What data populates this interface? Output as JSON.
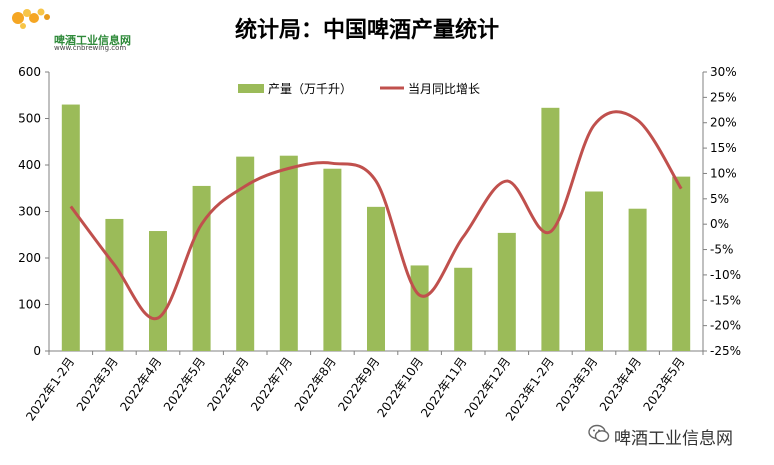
{
  "logo": {
    "name": "啤酒工业信息网",
    "url": "www.cnbrewing.com"
  },
  "watermark": "啤酒工业信息网",
  "colors": {
    "bar": "#9bbb59",
    "line": "#c0504d",
    "axis": "#808080",
    "text": "#000000"
  },
  "chart_data": {
    "type": "bar",
    "title": "统计局：中国啤酒产量统计",
    "categories": [
      "2022年1-2月",
      "2022年3月",
      "2022年4月",
      "2022年5月",
      "2022年6月",
      "2022年7月",
      "2022年8月",
      "2022年9月",
      "2022年10月",
      "2022年11月",
      "2022年12月",
      "2023年1-2月",
      "2023年3月",
      "2023年4月",
      "2023年5月"
    ],
    "series": [
      {
        "name": "产量（万千升）",
        "type": "bar",
        "axis": "left",
        "values": [
          530,
          284,
          258,
          355,
          418,
          420,
          392,
          310,
          184,
          179,
          254,
          523,
          343,
          306,
          375
        ]
      },
      {
        "name": "当月同比增长",
        "type": "line",
        "axis": "right",
        "unit": "%",
        "values": [
          3.5,
          -8,
          -18.5,
          0,
          7.5,
          11,
          12,
          8.5,
          -14,
          -2.5,
          8.5,
          -1.5,
          19.5,
          20.5,
          7
        ]
      }
    ],
    "left_axis": {
      "ylim": [
        0,
        600
      ],
      "ticks": [
        "0",
        "100",
        "200",
        "300",
        "400",
        "500",
        "600"
      ]
    },
    "right_axis": {
      "ylim": [
        -25,
        30
      ],
      "ticks": [
        "-25%",
        "-20%",
        "-15%",
        "-10%",
        "-5%",
        "0%",
        "5%",
        "10%",
        "15%",
        "20%",
        "25%",
        "30%"
      ]
    },
    "legend_position": "top-center",
    "grid": false
  }
}
